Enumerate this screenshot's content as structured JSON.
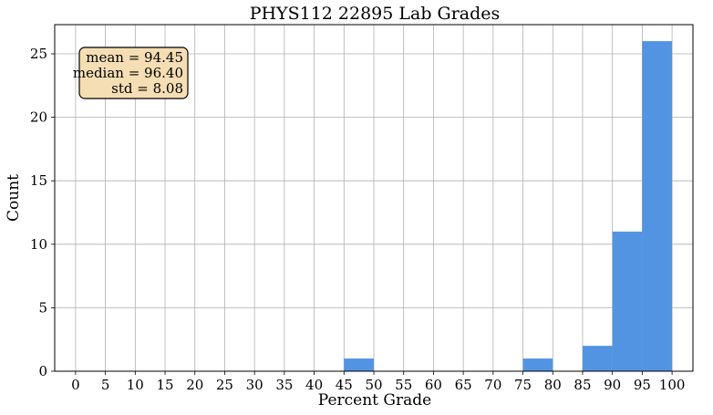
{
  "chart_data": {
    "type": "bar",
    "title": "PHYS112 22895 Lab Grades",
    "xlabel": "Percent Grade",
    "ylabel": "Count",
    "xlim": [
      -3.5,
      103.5
    ],
    "ylim": [
      0,
      27.3
    ],
    "xticks": [
      0,
      5,
      10,
      15,
      20,
      25,
      30,
      35,
      40,
      45,
      50,
      55,
      60,
      65,
      70,
      75,
      80,
      85,
      90,
      95,
      100
    ],
    "yticks": [
      0,
      5,
      10,
      15,
      20,
      25
    ],
    "grid": true,
    "bar_color": "#5294e2",
    "bins": [
      {
        "start": 45,
        "end": 50,
        "count": 1
      },
      {
        "start": 75,
        "end": 80,
        "count": 1
      },
      {
        "start": 85,
        "end": 90,
        "count": 2
      },
      {
        "start": 90,
        "end": 95,
        "count": 11
      },
      {
        "start": 95,
        "end": 100,
        "count": 26
      }
    ],
    "stats_box": {
      "position": "top-left",
      "facecolor": "#f5deb3",
      "lines": [
        "mean = 94.45",
        "median = 96.40",
        "std = 8.08"
      ]
    }
  }
}
